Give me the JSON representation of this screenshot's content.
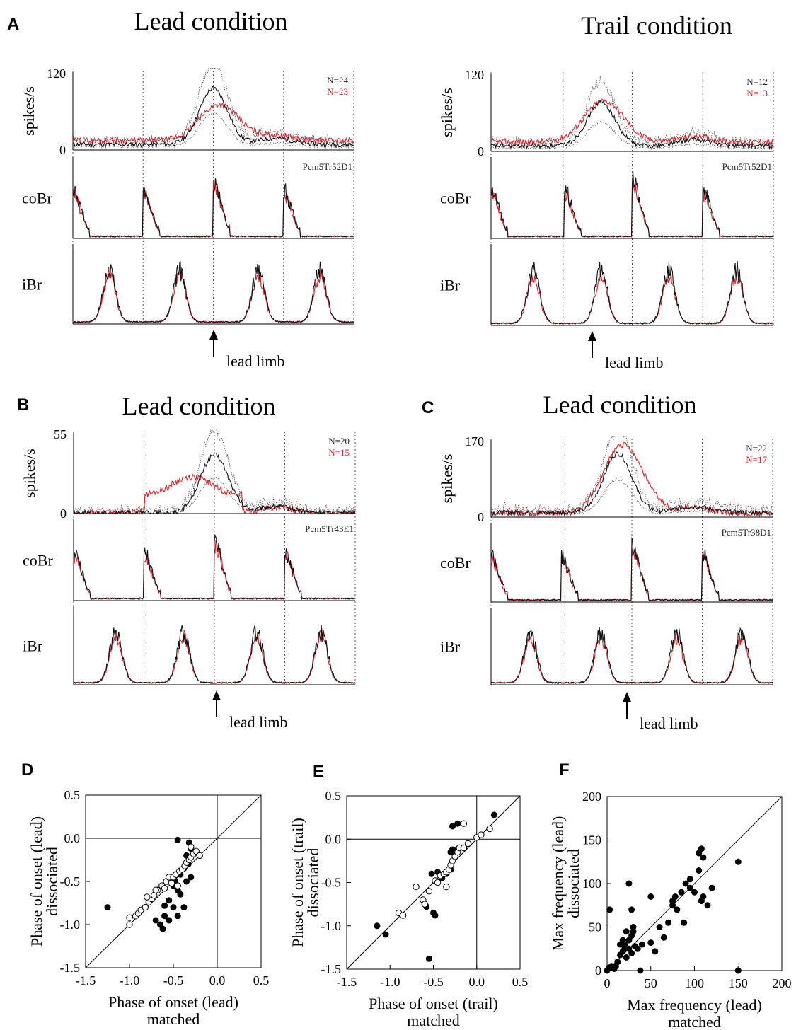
{
  "chart_data": [
    {
      "panel": "A",
      "title": "Lead condition",
      "type": "line",
      "rate_ylabel": "spikes/s",
      "rate_ymax": "120",
      "rate_ymin": "0",
      "n_black": "N=24",
      "n_red": "N=23",
      "cell_id": "Pcm5Tr52D1",
      "emg_labels": [
        "coBr",
        "iBr"
      ],
      "arrow_label": "lead limb",
      "rate_peak_black": 95,
      "rate_peak_red": 70
    },
    {
      "panel": "",
      "title": "Trail condition",
      "type": "line",
      "rate_ylabel": "spikes/s",
      "rate_ymax": "120",
      "rate_ymin": "0",
      "n_black": "N=12",
      "n_red": "N=13",
      "cell_id": "Pcm5Tr52D1",
      "emg_labels": [
        "coBr",
        "iBr"
      ],
      "arrow_label": "lead limb",
      "rate_peak_black": 75,
      "rate_peak_red": 78
    },
    {
      "panel": "B",
      "title": "Lead condition",
      "type": "line",
      "rate_ylabel": "spikes/s",
      "rate_ymax": "55",
      "rate_ymin": "0",
      "n_black": "N=20",
      "n_red": "N=15",
      "cell_id": "Pcm5Tr43E1",
      "emg_labels": [
        "coBr",
        "iBr"
      ],
      "arrow_label": "lead limb",
      "rate_peak_black": 40,
      "rate_peak_red": 25
    },
    {
      "panel": "C",
      "title": "Lead condition",
      "type": "line",
      "rate_ylabel": "spikes/s",
      "rate_ymax": "170",
      "rate_ymin": "0",
      "n_black": "N=22",
      "n_red": "N=17",
      "cell_id": "Pcm5Tr38D1",
      "emg_labels": [
        "coBr",
        "iBr"
      ],
      "arrow_label": "lead limb",
      "rate_peak_black": 140,
      "rate_peak_red": 160
    },
    {
      "panel": "D",
      "type": "scatter",
      "xlabel": "Phase of onset (lead)",
      "xlabel2": "matched",
      "ylabel": "Phase of onset (lead)",
      "ylabel2": "dissociated",
      "xlim": [
        -1.5,
        0.5
      ],
      "ylim": [
        -1.5,
        0.5
      ],
      "xticks": [
        "-1.5",
        "-1.0",
        "-0.5",
        "0.0",
        "0.5"
      ],
      "yticks": [
        "0.5",
        "0.0",
        "-0.5",
        "-1.0",
        "-1.5"
      ],
      "open": [
        [
          -1.0,
          -1.0
        ],
        [
          -1.0,
          -0.92
        ],
        [
          -0.93,
          -0.9
        ],
        [
          -0.9,
          -0.87
        ],
        [
          -0.87,
          -0.83
        ],
        [
          -0.82,
          -0.8
        ],
        [
          -0.78,
          -0.74
        ],
        [
          -0.75,
          -0.7
        ],
        [
          -0.72,
          -0.66
        ],
        [
          -0.68,
          -0.6
        ],
        [
          -0.63,
          -0.55
        ],
        [
          -0.6,
          -0.58
        ],
        [
          -0.58,
          -0.5
        ],
        [
          -0.55,
          -0.45
        ],
        [
          -0.52,
          -0.52
        ],
        [
          -0.5,
          -0.45
        ],
        [
          -0.47,
          -0.42
        ],
        [
          -0.43,
          -0.38
        ],
        [
          -0.4,
          -0.36
        ],
        [
          -0.37,
          -0.32
        ],
        [
          -0.35,
          -0.28
        ],
        [
          -0.32,
          -0.25
        ],
        [
          -0.3,
          -0.22
        ],
        [
          -0.27,
          -0.18
        ],
        [
          -0.24,
          -0.15
        ],
        [
          -0.2,
          -0.2
        ],
        [
          -0.3,
          -0.1
        ],
        [
          -0.7,
          -0.6
        ],
        [
          -0.8,
          -0.68
        ],
        [
          -0.45,
          -0.55
        ]
      ],
      "filled": [
        [
          -1.25,
          -0.8
        ],
        [
          -0.45,
          -0.02
        ],
        [
          -0.32,
          -0.05
        ],
        [
          -0.3,
          -0.12
        ],
        [
          -0.35,
          -0.2
        ],
        [
          -0.38,
          -0.35
        ],
        [
          -0.42,
          -0.42
        ],
        [
          -0.48,
          -0.5
        ],
        [
          -0.5,
          -0.55
        ],
        [
          -0.45,
          -0.6
        ],
        [
          -0.42,
          -0.65
        ],
        [
          -0.55,
          -0.72
        ],
        [
          -0.6,
          -0.78
        ],
        [
          -0.5,
          -0.8
        ],
        [
          -0.6,
          -0.9
        ],
        [
          -0.55,
          -0.95
        ],
        [
          -0.65,
          -1.0
        ],
        [
          -0.62,
          -1.05
        ],
        [
          -0.38,
          -0.8
        ],
        [
          -0.45,
          -0.9
        ],
        [
          -0.7,
          -0.95
        ],
        [
          -0.35,
          -0.5
        ],
        [
          -0.3,
          -0.45
        ],
        [
          -0.33,
          -0.3
        ]
      ]
    },
    {
      "panel": "E",
      "type": "scatter",
      "xlabel": "Phase of onset (trail)",
      "xlabel2": "matched",
      "ylabel": "Phase of onset (trail)",
      "ylabel2": "dissociated",
      "xlim": [
        -1.5,
        0.5
      ],
      "ylim": [
        -1.5,
        0.5
      ],
      "xticks": [
        "-1.5",
        "-1.0",
        "-0.5",
        "0.0",
        "0.5"
      ],
      "yticks": [
        "0.5",
        "0.0",
        "-0.5",
        "-1.0",
        "-1.5"
      ],
      "open": [
        [
          -0.9,
          -0.85
        ],
        [
          -0.85,
          -0.88
        ],
        [
          -0.7,
          -0.55
        ],
        [
          -0.62,
          -0.7
        ],
        [
          -0.55,
          -0.6
        ],
        [
          -0.48,
          -0.48
        ],
        [
          -0.42,
          -0.42
        ],
        [
          -0.38,
          -0.4
        ],
        [
          -0.35,
          -0.38
        ],
        [
          -0.32,
          -0.35
        ],
        [
          -0.3,
          -0.3
        ],
        [
          -0.28,
          -0.25
        ],
        [
          -0.25,
          -0.2
        ],
        [
          -0.22,
          -0.15
        ],
        [
          -0.2,
          -0.1
        ],
        [
          -0.45,
          -0.5
        ],
        [
          -0.15,
          -0.1
        ],
        [
          -0.1,
          -0.05
        ],
        [
          0.0,
          0.02
        ],
        [
          0.05,
          0.05
        ],
        [
          0.15,
          0.12
        ],
        [
          -0.15,
          0.18
        ],
        [
          -0.6,
          -0.75
        ],
        [
          -0.35,
          -0.55
        ]
      ],
      "filled": [
        [
          -1.15,
          -1.0
        ],
        [
          -1.05,
          -1.1
        ],
        [
          -0.55,
          -1.38
        ],
        [
          -0.5,
          -0.85
        ],
        [
          -0.48,
          -0.88
        ],
        [
          -0.58,
          -0.78
        ],
        [
          -0.52,
          -0.4
        ],
        [
          -0.45,
          -0.38
        ],
        [
          -0.4,
          -0.45
        ],
        [
          -0.35,
          -0.4
        ],
        [
          -0.3,
          -0.35
        ],
        [
          -0.28,
          -0.12
        ],
        [
          -0.25,
          -0.18
        ],
        [
          -0.22,
          -0.12
        ],
        [
          -0.2,
          -0.1
        ],
        [
          -0.28,
          0.15
        ],
        [
          -0.22,
          0.18
        ],
        [
          0.2,
          0.28
        ],
        [
          -0.3,
          -0.15
        ]
      ]
    },
    {
      "panel": "F",
      "type": "scatter",
      "xlabel": "Max frequency (lead)",
      "xlabel2": "matched",
      "ylabel": "Max frequency (lead)",
      "ylabel2": "dissociated",
      "xlim": [
        0,
        200
      ],
      "ylim": [
        0,
        200
      ],
      "xticks": [
        "0",
        "50",
        "100",
        "150",
        "200"
      ],
      "yticks": [
        "200",
        "150",
        "100",
        "50",
        "0"
      ],
      "filled": [
        [
          0,
          0
        ],
        [
          2,
          3
        ],
        [
          5,
          5
        ],
        [
          8,
          2
        ],
        [
          3,
          70
        ],
        [
          12,
          10
        ],
        [
          15,
          18
        ],
        [
          18,
          22
        ],
        [
          20,
          30
        ],
        [
          22,
          15
        ],
        [
          25,
          25
        ],
        [
          25,
          35
        ],
        [
          28,
          40
        ],
        [
          30,
          45
        ],
        [
          28,
          20
        ],
        [
          32,
          28
        ],
        [
          30,
          50
        ],
        [
          28,
          70
        ],
        [
          25,
          100
        ],
        [
          20,
          25
        ],
        [
          35,
          25
        ],
        [
          38,
          0
        ],
        [
          40,
          30
        ],
        [
          50,
          32
        ],
        [
          55,
          22
        ],
        [
          50,
          85
        ],
        [
          65,
          38
        ],
        [
          70,
          55
        ],
        [
          75,
          75
        ],
        [
          78,
          85
        ],
        [
          80,
          70
        ],
        [
          85,
          90
        ],
        [
          90,
          100
        ],
        [
          88,
          55
        ],
        [
          95,
          105
        ],
        [
          100,
          90
        ],
        [
          105,
          115
        ],
        [
          105,
          135
        ],
        [
          108,
          140
        ],
        [
          110,
          130
        ],
        [
          110,
          85
        ],
        [
          115,
          75
        ],
        [
          120,
          95
        ],
        [
          108,
          80
        ],
        [
          150,
          125
        ],
        [
          150,
          0
        ],
        [
          15,
          30
        ],
        [
          18,
          35
        ],
        [
          10,
          5
        ],
        [
          22,
          45
        ],
        [
          60,
          50
        ],
        [
          75,
          80
        ],
        [
          95,
          95
        ]
      ]
    }
  ]
}
